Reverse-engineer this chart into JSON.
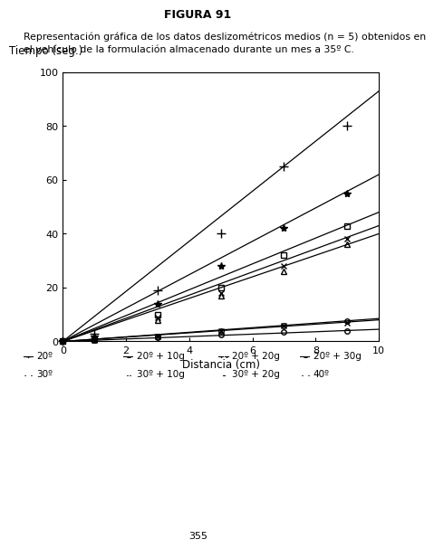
{
  "title": "FIGURA 91",
  "subtitle_line1": "Representación gráfica de los datos deslizométricos medios (n = 5) obtenidos en",
  "subtitle_line2": "el vehículo de la formulación almacenado durante un mes a 35º C.",
  "xlabel": "Distancia (cm)",
  "ylabel": "Tiempo (seg.)",
  "xlim": [
    0,
    10
  ],
  "ylim": [
    0,
    100
  ],
  "xticks": [
    0,
    2,
    4,
    6,
    8,
    10
  ],
  "yticks": [
    0,
    20,
    40,
    60,
    80,
    100
  ],
  "page_number": "355",
  "series": [
    {
      "label": "20º",
      "marker": "+",
      "ms": 7,
      "mfc": null,
      "lw": 0.9,
      "x": [
        0,
        1,
        3,
        5,
        7,
        9
      ],
      "y": [
        0,
        3,
        19,
        40,
        65,
        80
      ],
      "fx": [
        0,
        10
      ],
      "fy": [
        0,
        93
      ]
    },
    {
      "label": "30º",
      "marker": "o",
      "ms": 4,
      "mfc": "none",
      "lw": 0.9,
      "x": [
        0,
        1,
        3,
        5,
        7,
        9
      ],
      "y": [
        0,
        0.5,
        1.5,
        2.5,
        3.5,
        4
      ],
      "fx": [
        0,
        10
      ],
      "fy": [
        0,
        4.5
      ]
    },
    {
      "label": "20º + 10g",
      "marker": "*",
      "ms": 6,
      "mfc": null,
      "lw": 0.9,
      "x": [
        0,
        1,
        3,
        5,
        7,
        9
      ],
      "y": [
        0,
        2,
        14,
        28,
        42,
        55
      ],
      "fx": [
        0,
        10
      ],
      "fy": [
        0,
        62
      ]
    },
    {
      "label": "20º + 20g",
      "marker": "s",
      "ms": 4,
      "mfc": "none",
      "lw": 0.9,
      "x": [
        0,
        1,
        3,
        5,
        7,
        9
      ],
      "y": [
        0,
        1,
        10,
        20,
        32,
        43
      ],
      "fx": [
        0,
        10
      ],
      "fy": [
        0,
        48
      ]
    },
    {
      "label": "20º + 30g",
      "marker": "x",
      "ms": 5,
      "mfc": null,
      "lw": 0.9,
      "x": [
        0,
        1,
        3,
        5,
        7,
        9
      ],
      "y": [
        0,
        1,
        9,
        18,
        28,
        38
      ],
      "fx": [
        0,
        10
      ],
      "fy": [
        0,
        43
      ]
    },
    {
      "label": "30º + 10g",
      "marker": "^",
      "ms": 4,
      "mfc": "none",
      "lw": 0.9,
      "x": [
        0,
        1,
        3,
        5,
        7,
        9
      ],
      "y": [
        0,
        1,
        8,
        17,
        26,
        36
      ],
      "fx": [
        0,
        10
      ],
      "fy": [
        0,
        40
      ]
    },
    {
      "label": "30º + 20g",
      "marker": "x",
      "ms": 4,
      "mfc": null,
      "lw": 0.9,
      "x": [
        0,
        1,
        3,
        5,
        7,
        9
      ],
      "y": [
        0,
        0.5,
        2,
        4,
        6,
        7
      ],
      "fx": [
        0,
        10
      ],
      "fy": [
        0,
        8
      ]
    },
    {
      "label": "40º",
      "marker": "o",
      "ms": 4,
      "mfc": "none",
      "lw": 0.9,
      "x": [
        0,
        1,
        3,
        5,
        7,
        9
      ],
      "y": [
        0,
        0.5,
        2,
        4,
        6,
        7.5
      ],
      "fx": [
        0,
        10
      ],
      "fy": [
        0,
        8.5
      ]
    }
  ],
  "background_color": "#ffffff"
}
